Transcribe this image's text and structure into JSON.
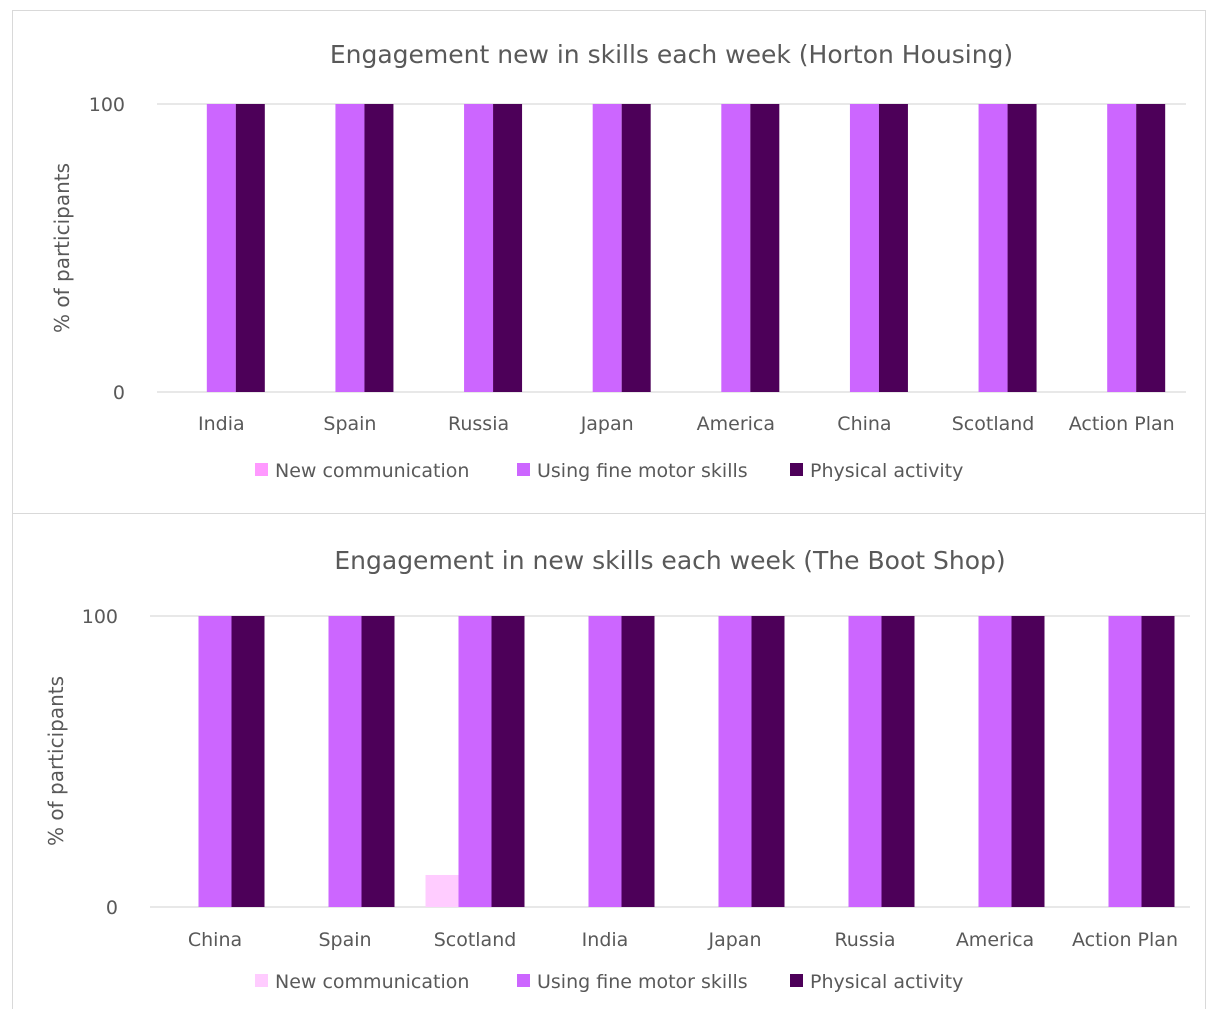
{
  "chart_data": [
    {
      "type": "bar",
      "title": "Engagement new in skills each week (Horton Housing)",
      "ylabel": "% of participants",
      "xlabel": "",
      "ylim": [
        0,
        100
      ],
      "yticks": [
        0,
        100
      ],
      "grid": true,
      "legend_position": "bottom",
      "categories": [
        "India",
        "Spain",
        "Russia",
        "Japan",
        "America",
        "China",
        "Scotland",
        "Action Plan"
      ],
      "series": [
        {
          "name": "New communication",
          "color": "#ff99ff",
          "values": [
            0,
            0,
            0,
            0,
            0,
            0,
            0,
            0
          ]
        },
        {
          "name": "Using fine motor skills",
          "color": "#cc66ff",
          "values": [
            100,
            100,
            100,
            100,
            100,
            100,
            100,
            100
          ]
        },
        {
          "name": "Physical activity",
          "color": "#4d0059",
          "values": [
            100,
            100,
            100,
            100,
            100,
            100,
            100,
            100
          ]
        }
      ]
    },
    {
      "type": "bar",
      "title": "Engagement in new skills each week (The Boot Shop)",
      "ylabel": "% of participants",
      "xlabel": "",
      "ylim": [
        0,
        100
      ],
      "yticks": [
        0,
        100
      ],
      "grid": true,
      "legend_position": "bottom",
      "categories": [
        "China",
        "Spain",
        "Scotland",
        "India",
        "Japan",
        "Russia",
        "America",
        "Action Plan"
      ],
      "series": [
        {
          "name": "New communication",
          "color": "#ffccff",
          "values": [
            0,
            0,
            11,
            0,
            0,
            0,
            0,
            0
          ]
        },
        {
          "name": "Using fine motor skills",
          "color": "#cc66ff",
          "values": [
            100,
            100,
            100,
            100,
            100,
            100,
            100,
            100
          ]
        },
        {
          "name": "Physical activity",
          "color": "#4d0059",
          "values": [
            100,
            100,
            100,
            100,
            100,
            100,
            100,
            100
          ]
        }
      ]
    }
  ]
}
